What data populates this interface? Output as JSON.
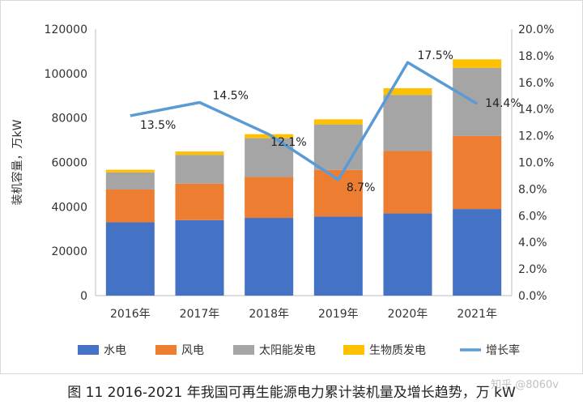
{
  "chart_data": {
    "type": "bar",
    "categories": [
      "2016年",
      "2017年",
      "2018年",
      "2019年",
      "2020年",
      "2021年"
    ],
    "series": [
      {
        "name": "水电",
        "kind": "bar",
        "color": "#4472C4",
        "values": [
          33000,
          34000,
          35000,
          35600,
          37000,
          39000
        ]
      },
      {
        "name": "风电",
        "kind": "bar",
        "color": "#ED7D31",
        "values": [
          14800,
          16400,
          18400,
          21000,
          28100,
          32900
        ]
      },
      {
        "name": "太阳能发电",
        "kind": "bar",
        "color": "#A5A5A5",
        "values": [
          7700,
          13000,
          17500,
          20500,
          25300,
          30700
        ]
      },
      {
        "name": "生物质发电",
        "kind": "bar",
        "color": "#FFC000",
        "values": [
          1200,
          1500,
          1800,
          2300,
          3000,
          3800
        ]
      },
      {
        "name": "增长率",
        "kind": "line",
        "axis": "right",
        "color": "#5B9BD5",
        "values": [
          13.5,
          14.5,
          12.1,
          8.7,
          17.5,
          14.4
        ],
        "labels": [
          "13.5%",
          "14.5%",
          "12.1%",
          "8.7%",
          "17.5%",
          "14.4%"
        ]
      }
    ],
    "ylabel": "装机容量，万kW",
    "ylim": [
      0,
      120000
    ],
    "y_ticks": [
      "0",
      "20000",
      "40000",
      "60000",
      "80000",
      "100000",
      "120000"
    ],
    "y2lim": [
      0,
      20
    ],
    "y2_ticks": [
      "0.0%",
      "2.0%",
      "4.0%",
      "6.0%",
      "8.0%",
      "10.0%",
      "12.0%",
      "14.0%",
      "16.0%",
      "18.0%",
      "20.0%"
    ],
    "grid": false,
    "legend_position": "bottom"
  },
  "caption": "图 11 2016-2021 年我国可再生能源电力累计装机量及增长趋势，万 kW",
  "watermark": "知乎 @8060v"
}
